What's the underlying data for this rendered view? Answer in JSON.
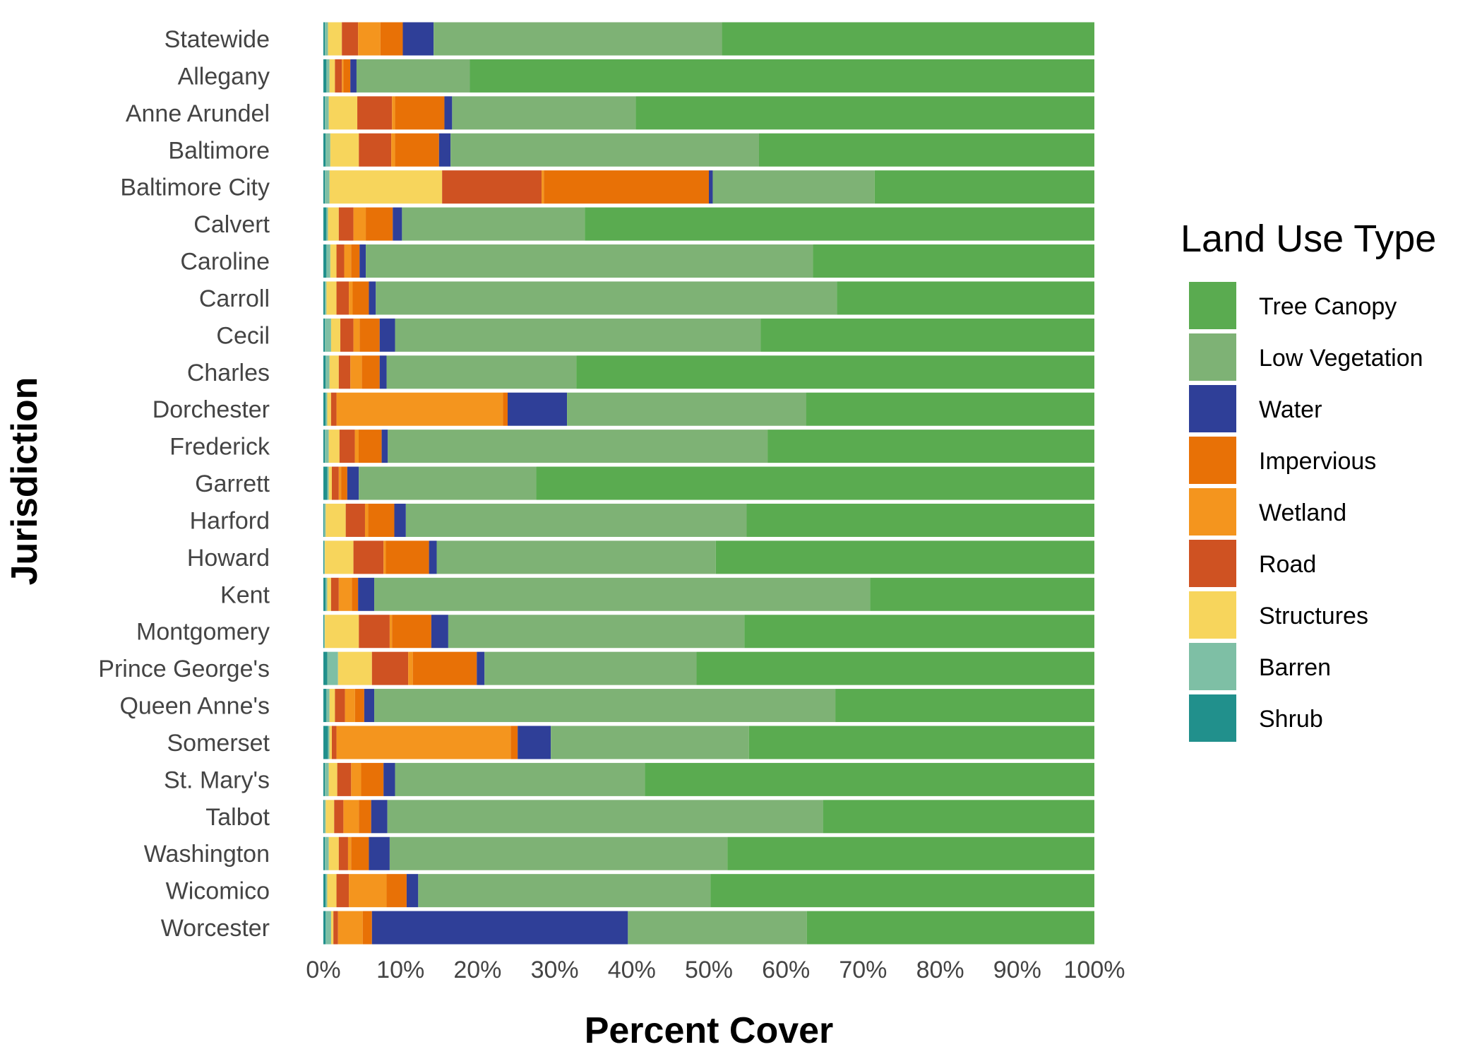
{
  "chart_data": {
    "type": "bar",
    "orientation": "horizontal",
    "stacked": true,
    "xlabel": "Percent Cover",
    "ylabel": "Jurisdiction",
    "xlim": [
      0,
      100
    ],
    "x_ticks": [
      "0%",
      "10%",
      "20%",
      "30%",
      "40%",
      "50%",
      "60%",
      "70%",
      "80%",
      "90%",
      "100%"
    ],
    "grid": false,
    "legend": {
      "title": "Land Use Type",
      "position": "right"
    },
    "categories": [
      "Statewide",
      "Allegany",
      "Anne Arundel",
      "Baltimore",
      "Baltimore City",
      "Calvert",
      "Caroline",
      "Carroll",
      "Cecil",
      "Charles",
      "Dorchester",
      "Frederick",
      "Garrett",
      "Harford",
      "Howard",
      "Kent",
      "Montgomery",
      "Prince George's",
      "Queen Anne's",
      "Somerset",
      "St. Mary's",
      "Talbot",
      "Washington",
      "Wicomico",
      "Worcester"
    ],
    "stack_order": [
      "Shrub",
      "Barren",
      "Structures",
      "Road",
      "Wetland",
      "Impervious",
      "Water",
      "Low Vegetation",
      "Tree Canopy"
    ],
    "series": [
      {
        "name": "Tree Canopy",
        "color": "#5aab50",
        "values": [
          48.3,
          81.0,
          59.5,
          43.5,
          28.5,
          66.1,
          36.5,
          33.4,
          43.3,
          67.2,
          37.4,
          42.6,
          72.4,
          45.1,
          49.1,
          29.1,
          45.4,
          51.6,
          33.6,
          44.8,
          58.3,
          35.2,
          47.6,
          49.8,
          37.3
        ]
      },
      {
        "name": "Low Vegetation",
        "color": "#7eb275",
        "values": [
          37.4,
          14.7,
          23.8,
          40.0,
          21.0,
          23.7,
          58.0,
          59.8,
          47.4,
          24.6,
          31.0,
          49.5,
          23.0,
          44.2,
          36.2,
          64.3,
          38.4,
          27.5,
          59.8,
          25.7,
          32.4,
          56.5,
          43.8,
          37.9,
          23.2
        ]
      },
      {
        "name": "Water",
        "color": "#2f3f98",
        "values": [
          4.0,
          0.8,
          1.0,
          1.5,
          0.5,
          1.2,
          0.8,
          0.9,
          2.0,
          0.9,
          7.7,
          0.8,
          1.5,
          1.5,
          1.0,
          2.1,
          2.2,
          1.0,
          1.3,
          4.3,
          1.5,
          2.1,
          2.7,
          1.5,
          33.2
        ]
      },
      {
        "name": "Impervious",
        "color": "#e87106",
        "values": [
          2.9,
          0.9,
          6.4,
          5.7,
          21.4,
          3.5,
          1.1,
          2.1,
          2.6,
          2.3,
          0.6,
          3.0,
          0.8,
          3.4,
          5.6,
          0.8,
          5.1,
          8.3,
          1.2,
          0.9,
          2.9,
          1.6,
          2.3,
          2.6,
          1.2
        ]
      },
      {
        "name": "Wetland",
        "color": "#f4951e",
        "values": [
          2.9,
          0.2,
          0.4,
          0.5,
          0.3,
          1.6,
          0.9,
          0.5,
          0.8,
          1.5,
          21.6,
          0.5,
          0.3,
          0.4,
          0.3,
          1.7,
          0.3,
          0.6,
          1.3,
          22.6,
          1.3,
          2.0,
          0.4,
          4.9,
          3.2
        ]
      },
      {
        "name": "Road",
        "color": "#cf5222",
        "values": [
          2.1,
          0.9,
          4.5,
          4.2,
          12.9,
          1.9,
          1.0,
          1.6,
          1.7,
          1.5,
          0.7,
          2.0,
          0.9,
          2.5,
          3.9,
          1.0,
          4.0,
          4.7,
          1.3,
          0.6,
          1.8,
          1.2,
          1.2,
          1.6,
          0.6
        ]
      },
      {
        "name": "Structures",
        "color": "#f7d55c",
        "values": [
          1.8,
          0.7,
          3.7,
          3.7,
          14.6,
          1.4,
          0.8,
          1.3,
          1.2,
          1.2,
          0.5,
          1.4,
          0.4,
          2.6,
          3.7,
          0.5,
          4.4,
          4.4,
          0.7,
          0.3,
          1.1,
          1.1,
          1.3,
          1.2,
          0.3
        ]
      },
      {
        "name": "Barren",
        "color": "#7ebfa5",
        "values": [
          0.4,
          0.4,
          0.5,
          0.6,
          0.6,
          0.2,
          0.5,
          0.2,
          0.8,
          0.5,
          0.2,
          0.5,
          0.2,
          0.2,
          0.1,
          0.2,
          0.1,
          1.4,
          0.4,
          0.2,
          0.5,
          0.2,
          0.5,
          0.2,
          0.7
        ]
      },
      {
        "name": "Shrub",
        "color": "#21908c",
        "values": [
          0.2,
          0.4,
          0.2,
          0.3,
          0.2,
          0.4,
          0.4,
          0.2,
          0.2,
          0.3,
          0.3,
          0.2,
          0.5,
          0.1,
          0.1,
          0.3,
          0.1,
          0.5,
          0.4,
          0.6,
          0.2,
          0.1,
          0.2,
          0.3,
          0.3
        ]
      }
    ]
  }
}
